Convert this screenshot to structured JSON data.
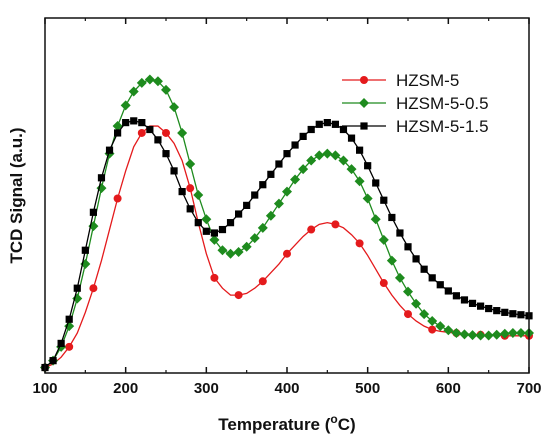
{
  "chart_data": {
    "type": "line",
    "xlabel": "Temperature (",
    "xlabel_sup": "o",
    "xlabel_unit": "C)",
    "ylabel": "TCD Signal (a.u.)",
    "xlim": [
      100,
      700
    ],
    "ylim": [
      0,
      100
    ],
    "xticks": [
      "100",
      "200",
      "300",
      "400",
      "500",
      "600",
      "700"
    ],
    "yticks_shown": false,
    "legend_position": "top-right",
    "series": [
      {
        "name": "HZSM-5",
        "color": "#e41a1c",
        "marker": "circle",
        "marker_every": 3,
        "x": [
          100,
          110,
          120,
          130,
          140,
          150,
          160,
          170,
          180,
          190,
          200,
          210,
          220,
          230,
          240,
          250,
          260,
          270,
          280,
          290,
          300,
          310,
          320,
          330,
          340,
          350,
          360,
          370,
          380,
          390,
          400,
          410,
          420,
          430,
          440,
          450,
          460,
          470,
          480,
          490,
          500,
          510,
          520,
          530,
          540,
          550,
          560,
          570,
          580,
          590,
          600,
          610,
          620,
          630,
          640,
          650,
          660,
          670,
          680,
          690,
          700
        ],
        "y": [
          1,
          2,
          4,
          7,
          11,
          17,
          24,
          32,
          41,
          50,
          58,
          65,
          69,
          71,
          71,
          69,
          66,
          61,
          53,
          43,
          34,
          27,
          24,
          22,
          22,
          22.5,
          24,
          26,
          28.5,
          31,
          34,
          36.5,
          39,
          41,
          42.5,
          43,
          42.5,
          41.5,
          39.5,
          37,
          33.5,
          29.5,
          25.5,
          22,
          19,
          16.5,
          14.5,
          13,
          12,
          11.5,
          11.2,
          11,
          10.8,
          10.6,
          10.5,
          10.4,
          10.3,
          10.2,
          10.2,
          10.2,
          10.2
        ]
      },
      {
        "name": "HZSM-5-0.5",
        "color": "#1e8b1e",
        "marker": "diamond",
        "marker_every": 1,
        "x": [
          100,
          110,
          120,
          130,
          140,
          150,
          160,
          170,
          180,
          190,
          200,
          210,
          220,
          230,
          240,
          250,
          260,
          270,
          280,
          290,
          300,
          310,
          320,
          330,
          340,
          350,
          360,
          370,
          380,
          390,
          400,
          410,
          420,
          430,
          440,
          450,
          460,
          470,
          480,
          490,
          500,
          510,
          520,
          530,
          540,
          550,
          560,
          570,
          580,
          590,
          600,
          610,
          620,
          630,
          640,
          650,
          660,
          670,
          680,
          690,
          700
        ],
        "y": [
          1,
          3,
          7,
          13,
          21,
          31,
          42,
          53,
          63,
          71,
          77,
          81,
          83.5,
          84.5,
          84,
          81.5,
          76.5,
          69,
          60,
          51,
          44,
          38,
          35,
          34,
          34.5,
          36,
          38.5,
          41.5,
          45,
          48.5,
          52,
          55.5,
          58.5,
          61,
          62.5,
          63,
          62.5,
          61,
          58.5,
          55,
          50,
          44,
          38,
          32,
          27,
          23,
          19.5,
          16.5,
          14.5,
          13,
          11.8,
          11,
          10.6,
          10.4,
          10.3,
          10.3,
          10.5,
          10.8,
          11,
          11,
          11
        ]
      },
      {
        "name": "HZSM-5-1.5",
        "color": "#000000",
        "marker": "square",
        "marker_every": 1,
        "x": [
          100,
          110,
          120,
          130,
          140,
          150,
          160,
          170,
          180,
          190,
          200,
          210,
          220,
          230,
          240,
          250,
          260,
          270,
          280,
          290,
          300,
          310,
          320,
          330,
          340,
          350,
          360,
          370,
          380,
          390,
          400,
          410,
          420,
          430,
          440,
          450,
          460,
          470,
          480,
          490,
          500,
          510,
          520,
          530,
          540,
          550,
          560,
          570,
          580,
          590,
          600,
          610,
          620,
          630,
          640,
          650,
          660,
          670,
          680,
          690,
          700
        ],
        "y": [
          1,
          3,
          8,
          15,
          24,
          35,
          46,
          56,
          64,
          69,
          72,
          72.5,
          72,
          70,
          67,
          63,
          58,
          52,
          47,
          43,
          40.5,
          40,
          41,
          43,
          45.5,
          48,
          51,
          54,
          57,
          60,
          63,
          65.5,
          68,
          70,
          71.5,
          72,
          71.5,
          70,
          67.5,
          64,
          59.5,
          54.5,
          49.5,
          44.5,
          40,
          36,
          32.5,
          29.5,
          27,
          25,
          23.2,
          21.8,
          20.6,
          19.6,
          18.8,
          18.1,
          17.5,
          17,
          16.6,
          16.3,
          16
        ]
      }
    ]
  }
}
